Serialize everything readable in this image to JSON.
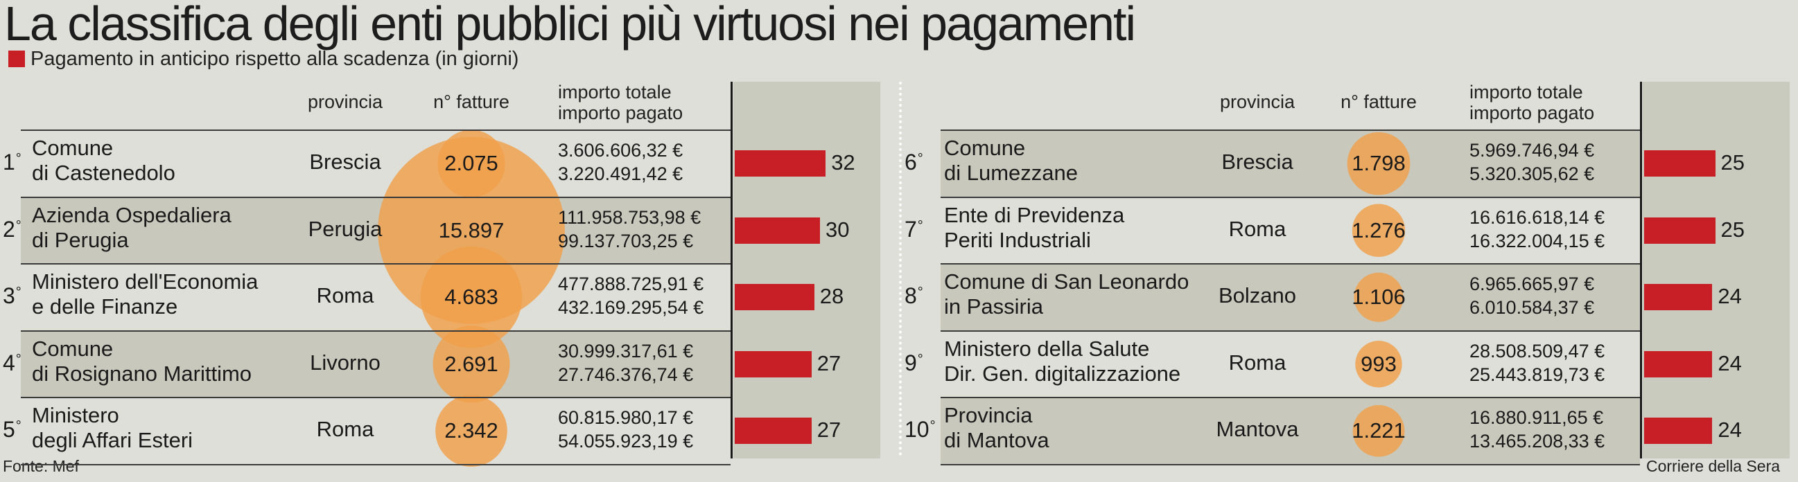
{
  "title": "La classifica degli enti pubblici più virtuosi nei pagamenti",
  "legend": "Pagamento in anticipo rispetto alla scadenza (in giorni)",
  "headers": {
    "provincia": "provincia",
    "fatture": "n° fatture",
    "importo_totale": "importo totale",
    "importo_pagato": "importo pagato"
  },
  "colors": {
    "bar": "#c81e26",
    "bubble": "#f0a04b",
    "band": "#c8c9bc",
    "gutter": "#c9cbbf"
  },
  "chart_data": {
    "type": "table",
    "title": "La classifica degli enti pubblici più virtuosi nei pagamenti",
    "legend": "Pagamento in anticipo rispetto alla scadenza (in giorni)",
    "columns": [
      "rank",
      "ente",
      "provincia",
      "n° fatture",
      "importo totale",
      "importo pagato",
      "giorni di anticipo"
    ],
    "rows": [
      {
        "rank": "1",
        "ente": [
          "Comune",
          "di Castenedolo"
        ],
        "provincia": "Brescia",
        "fatture": "2.075",
        "fatture_num": 2075,
        "totale": "3.606.606,32 €",
        "pagato": "3.220.491,42 €",
        "giorni": 32
      },
      {
        "rank": "2",
        "ente": [
          "Azienda Ospedaliera",
          "di Perugia"
        ],
        "provincia": "Perugia",
        "fatture": "15.897",
        "fatture_num": 15897,
        "totale": "111.958.753,98 €",
        "pagato": "99.137.703,25 €",
        "giorni": 30
      },
      {
        "rank": "3",
        "ente": [
          "Ministero dell'Economia",
          "e delle Finanze"
        ],
        "provincia": "Roma",
        "fatture": "4.683",
        "fatture_num": 4683,
        "totale": "477.888.725,91 €",
        "pagato": "432.169.295,54 €",
        "giorni": 28
      },
      {
        "rank": "4",
        "ente": [
          "Comune",
          "di Rosignano Marittimo"
        ],
        "provincia": "Livorno",
        "fatture": "2.691",
        "fatture_num": 2691,
        "totale": "30.999.317,61 €",
        "pagato": "27.746.376,74 €",
        "giorni": 27
      },
      {
        "rank": "5",
        "ente": [
          "Ministero",
          "degli Affari Esteri"
        ],
        "provincia": "Roma",
        "fatture": "2.342",
        "fatture_num": 2342,
        "totale": "60.815.980,17 €",
        "pagato": "54.055.923,19 €",
        "giorni": 27
      },
      {
        "rank": "6",
        "ente": [
          "Comune",
          "di Lumezzane"
        ],
        "provincia": "Brescia",
        "fatture": "1.798",
        "fatture_num": 1798,
        "totale": "5.969.746,94 €",
        "pagato": "5.320.305,62 €",
        "giorni": 25
      },
      {
        "rank": "7",
        "ente": [
          "Ente di Previdenza",
          "Periti Industriali"
        ],
        "provincia": "Roma",
        "fatture": "1.276",
        "fatture_num": 1276,
        "totale": "16.616.618,14 €",
        "pagato": "16.322.004,15 €",
        "giorni": 25
      },
      {
        "rank": "8",
        "ente": [
          "Comune di San Leonardo",
          "in Passiria"
        ],
        "provincia": "Bolzano",
        "fatture": "1.106",
        "fatture_num": 1106,
        "totale": "6.965.665,97 €",
        "pagato": "6.010.584,37 €",
        "giorni": 24
      },
      {
        "rank": "9",
        "ente": [
          "Ministero della Salute",
          "Dir. Gen. digitalizzazione"
        ],
        "provincia": "Roma",
        "fatture": "993",
        "fatture_num": 993,
        "totale": "28.508.509,47 €",
        "pagato": "25.443.819,73 €",
        "giorni": 24
      },
      {
        "rank": "10",
        "ente": [
          "Provincia",
          "di Mantova"
        ],
        "provincia": "Mantova",
        "fatture": "1.221",
        "fatture_num": 1221,
        "totale": "16.880.911,65 €",
        "pagato": "13.465.208,33 €",
        "giorni": 24
      }
    ]
  },
  "footer": {
    "source": "Fonte: Mef",
    "credit": "Corriere della Sera"
  }
}
